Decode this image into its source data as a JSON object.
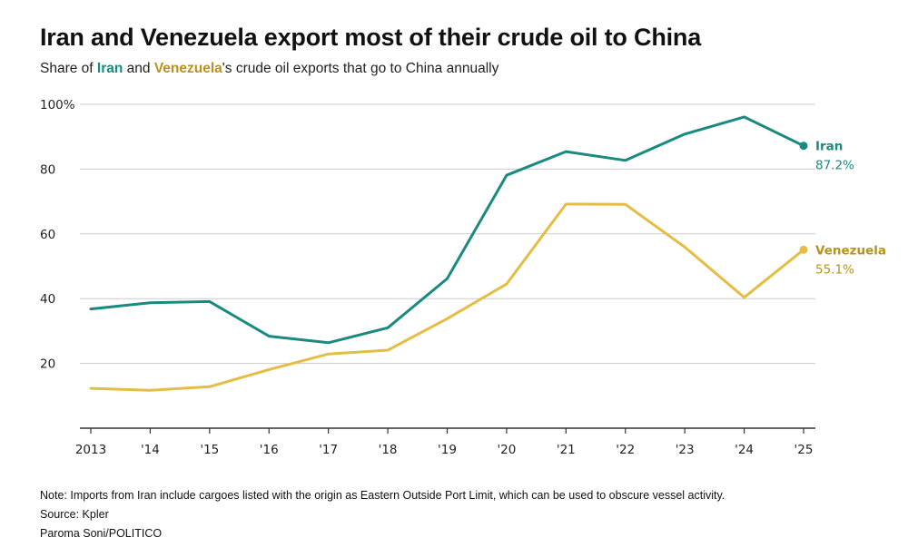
{
  "title": "Iran and Venezuela export most of their crude oil to China",
  "subtitle": {
    "prefix": "Share of ",
    "iran": "Iran",
    "and": " and ",
    "venezuela": "Venezuela",
    "suffix": "'s crude oil exports that go to China annually"
  },
  "footer": {
    "note": "Note: Imports from Iran include cargoes listed with the origin as Eastern Outside Port Limit, which can be used to obscure vessel activity.",
    "source": "Source: Kpler",
    "credit": "Paroma Soni/POLITICO"
  },
  "colors": {
    "iran": "#1a8a80",
    "venezuela": "#e5bd45",
    "venezuela_label": "#b8921c",
    "grid": "#cccccc",
    "axis": "#333333"
  },
  "chart_data": {
    "type": "line",
    "x": [
      2013,
      2014,
      2015,
      2016,
      2017,
      2018,
      2019,
      2020,
      2021,
      2022,
      2023,
      2024,
      2025
    ],
    "x_tick_labels": [
      "2013",
      "'14",
      "'15",
      "'16",
      "'17",
      "'18",
      "'19",
      "'20",
      "'21",
      "'22",
      "'23",
      "'24",
      "'25"
    ],
    "y_ticks": [
      20,
      40,
      60,
      80,
      100
    ],
    "y_tick_labels": [
      "20",
      "40",
      "60",
      "80",
      "100%"
    ],
    "ylim": [
      0,
      100
    ],
    "grid": true,
    "series": [
      {
        "name": "Iran",
        "color": "#1a8a80",
        "end_label": "Iran",
        "end_value_label": "87.2%",
        "values": [
          36.8,
          38.7,
          39.1,
          28.4,
          26.4,
          31.0,
          46.2,
          78.1,
          85.4,
          82.7,
          90.8,
          96.1,
          87.2
        ]
      },
      {
        "name": "Venezuela",
        "color": "#e5bd45",
        "end_label": "Venezuela",
        "end_value_label": "55.1%",
        "values": [
          12.3,
          11.7,
          12.8,
          18.1,
          22.9,
          24.1,
          33.8,
          44.5,
          69.2,
          69.1,
          55.9,
          40.4,
          55.1
        ]
      }
    ]
  }
}
